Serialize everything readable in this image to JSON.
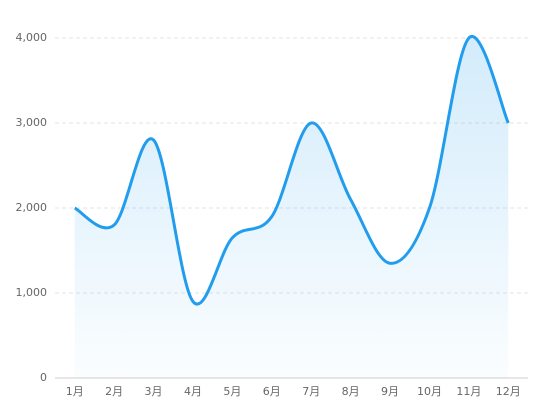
{
  "chart_data": {
    "type": "line",
    "categories": [
      "1月",
      "2月",
      "3月",
      "4月",
      "5月",
      "6月",
      "7月",
      "8月",
      "9月",
      "10月",
      "11月",
      "12月"
    ],
    "values": [
      2000,
      1800,
      2800,
      900,
      1650,
      1900,
      3000,
      2100,
      1350,
      2000,
      4000,
      3000
    ],
    "color": "#229ded",
    "ylim": [
      0,
      4000
    ],
    "yticks": [
      0,
      {
        "value": 1000,
        "label": "1,000"
      },
      {
        "value": 2000,
        "label": "2,000"
      },
      {
        "value": 3000,
        "label": "3,000"
      },
      {
        "value": 4000,
        "label": "4,000"
      }
    ],
    "grid": true,
    "smooth": true,
    "area": true
  }
}
